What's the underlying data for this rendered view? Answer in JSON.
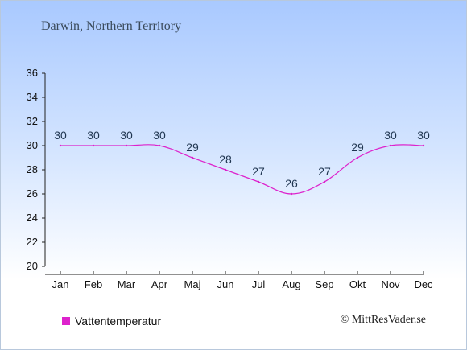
{
  "title": "Darwin, Northern Territory",
  "credit": "© MittResVader.se",
  "legend": {
    "label": "Vattentemperatur",
    "color": "#dd22cc"
  },
  "chart_data": {
    "type": "line",
    "categories": [
      "Jan",
      "Feb",
      "Mar",
      "Apr",
      "Maj",
      "Jun",
      "Jul",
      "Aug",
      "Sep",
      "Okt",
      "Nov",
      "Dec"
    ],
    "series": [
      {
        "name": "Vattentemperatur",
        "values": [
          30,
          30,
          30,
          30,
          29,
          28,
          27,
          26,
          27,
          29,
          30,
          30
        ],
        "color": "#dd22cc"
      }
    ],
    "data_labels": [
      "30",
      "30",
      "30",
      "30",
      "29",
      "28",
      "27",
      "26",
      "27",
      "29",
      "30",
      "30"
    ],
    "y_ticks": [
      20,
      22,
      24,
      26,
      28,
      30,
      32,
      34,
      36
    ],
    "ylim": [
      20,
      36
    ],
    "grid": false,
    "legend_position": "bottom-left"
  }
}
